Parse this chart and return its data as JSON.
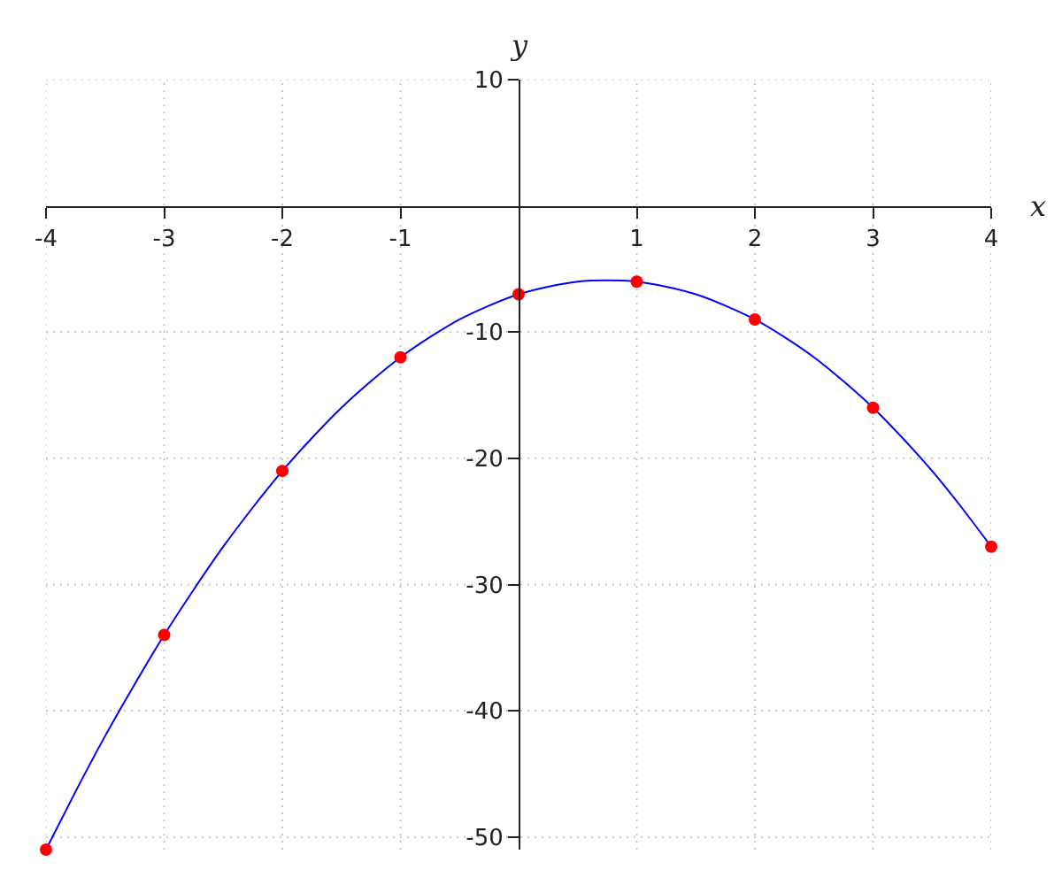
{
  "chart_data": {
    "type": "scatter",
    "xlabel": "x",
    "ylabel": "y",
    "xlim": [
      -4,
      4
    ],
    "ylim": [
      -51,
      10
    ],
    "xticks": [
      -4,
      -3,
      -2,
      -1,
      1,
      2,
      3,
      4
    ],
    "yticks": [
      10,
      -10,
      -20,
      -30,
      -40,
      -50
    ],
    "grid": true,
    "series": [
      {
        "type": "line",
        "color": "#0000ff",
        "marker": "none",
        "line_style": "solid",
        "x": [
          -4,
          -3.75,
          -3.5,
          -3.25,
          -3,
          -2.75,
          -2.5,
          -2.25,
          -2,
          -1.75,
          -1.5,
          -1.25,
          -1,
          -0.75,
          -0.5,
          -0.25,
          0,
          0.25,
          0.5,
          0.75,
          1,
          1.25,
          1.5,
          1.75,
          2,
          2.25,
          2.5,
          2.75,
          3,
          3.25,
          3.5,
          3.75,
          4
        ],
        "values": [
          -51,
          -46.4,
          -42,
          -37.9,
          -34,
          -30.4,
          -27,
          -23.9,
          -21,
          -18.4,
          -16,
          -13.9,
          -12,
          -10.4,
          -9,
          -7.9,
          -7,
          -6.4,
          -6,
          -5.9,
          -6,
          -6.4,
          -7,
          -7.9,
          -9,
          -10.4,
          -12,
          -13.9,
          -16,
          -18.4,
          -21,
          -23.9,
          -27
        ]
      },
      {
        "color": "#ff0000",
        "marker": "circle",
        "x": [
          -4,
          -3,
          -2,
          -1,
          0,
          1,
          2,
          3,
          4
        ],
        "values": [
          -51,
          -34,
          -21,
          -12,
          -7,
          -6,
          -9,
          -16,
          -27
        ]
      }
    ]
  }
}
